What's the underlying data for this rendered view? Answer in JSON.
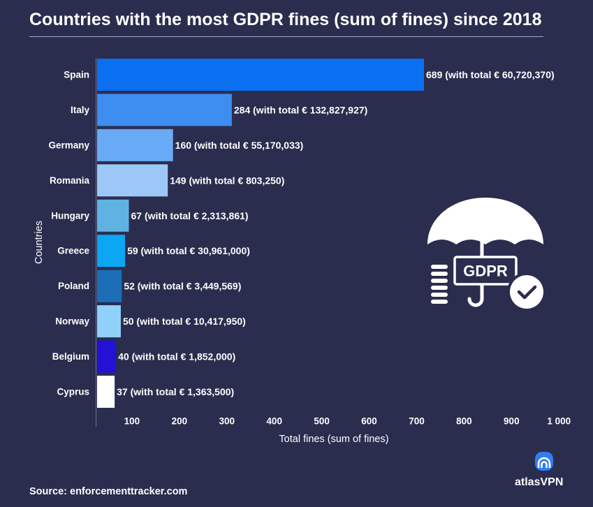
{
  "chart_data": {
    "type": "bar",
    "horizontal": true,
    "title": "Countries with the most GDPR fines (sum of fines) since 2018",
    "xlabel": "Total fines (sum of fines)",
    "ylabel": "Countries",
    "xlim": [
      0,
      1000
    ],
    "xtick_values": [
      100,
      200,
      300,
      400,
      500,
      600,
      700,
      800,
      900,
      1000
    ],
    "xtick_labels": [
      "100",
      "200",
      "300",
      "400",
      "500",
      "600",
      "700",
      "800",
      "900",
      "1 000"
    ],
    "grid": false,
    "categories": [
      "Spain",
      "Italy",
      "Germany",
      "Romania",
      "Hungary",
      "Greece",
      "Poland",
      "Norway",
      "Belgium",
      "Cyprus"
    ],
    "values": [
      689,
      284,
      160,
      149,
      67,
      59,
      52,
      50,
      40,
      37
    ],
    "data_labels": [
      "689 (with total € 60,720,370)",
      "284 (with total € 132,827,927)",
      "160 (with total € 55,170,033)",
      "149 (with total € 803,250)",
      "67 (with total € 2,313,861)",
      "59 (with total € 30,961,000)",
      "52 (with total € 3,449,569)",
      "50 (with total € 10,417,950)",
      "40 (with total € 1,852,000)",
      "37 (with total € 1,363,500)"
    ],
    "colors": [
      "#0b6ff1",
      "#3d8ef0",
      "#68aaf5",
      "#9cc8f7",
      "#5fb3e3",
      "#0ba6f4",
      "#1b6eb5",
      "#8fd1f9",
      "#2311d6",
      "#ffffff"
    ]
  },
  "gdpr_badge": {
    "label": "GDPR",
    "icon": "gdpr-umbrella-icon"
  },
  "source": "Source: enforcementtracker.com",
  "brand": {
    "name": "atlasVPN",
    "icon": "atlasvpn-logo-icon",
    "color": "#2f7ef5"
  },
  "theme": {
    "background": "#2b2d4f",
    "text": "#ffffff",
    "axis": "#6e7090"
  }
}
